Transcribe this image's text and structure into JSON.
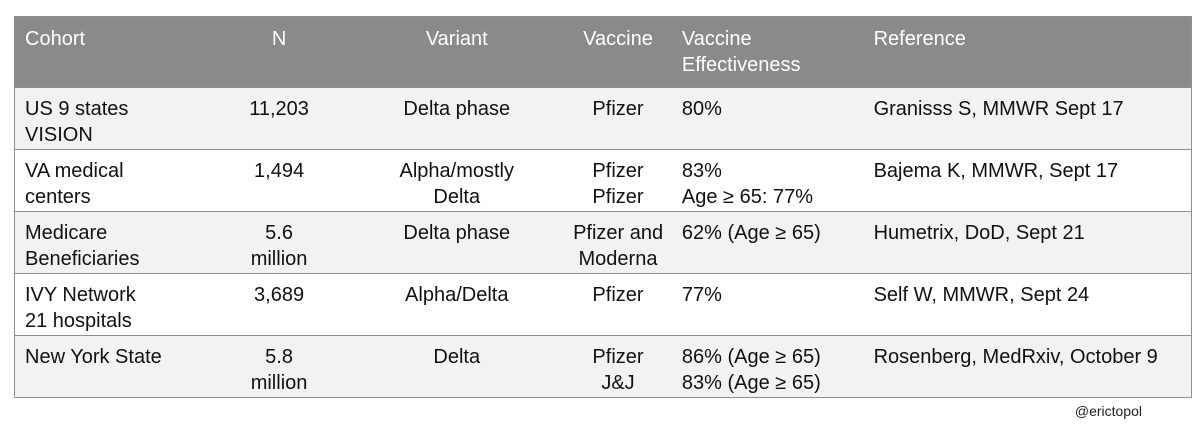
{
  "table": {
    "headers": [
      "Cohort",
      "N",
      "Variant",
      "Vaccine",
      "Vaccine Effectiveness",
      "Reference"
    ],
    "header_lines": [
      [
        "Cohort"
      ],
      [
        "N"
      ],
      [
        "Variant"
      ],
      [
        "Vaccine"
      ],
      [
        "Vaccine",
        "Effectiveness"
      ],
      [
        "Reference"
      ]
    ],
    "rows": [
      {
        "cohort": [
          "US 9 states",
          "VISION"
        ],
        "n": [
          "11,203"
        ],
        "variant": [
          "Delta phase"
        ],
        "vaccine": [
          "Pfizer"
        ],
        "effectiveness": [
          "80%"
        ],
        "reference": [
          "Granisss S, MMWR Sept 17"
        ]
      },
      {
        "cohort": [
          "VA medical",
          "centers"
        ],
        "n": [
          "1,494"
        ],
        "variant": [
          "Alpha/mostly",
          "Delta"
        ],
        "vaccine": [
          "Pfizer",
          "Pfizer"
        ],
        "effectiveness": [
          "83%",
          "Age ≥ 65: 77%"
        ],
        "reference": [
          "Bajema K, MMWR, Sept 17"
        ]
      },
      {
        "cohort": [
          "Medicare",
          "Beneficiaries"
        ],
        "n": [
          "5.6",
          "million"
        ],
        "variant": [
          "Delta phase"
        ],
        "vaccine": [
          "Pfizer and",
          "Moderna"
        ],
        "effectiveness": [
          "62% (Age ≥ 65)"
        ],
        "reference": [
          "Humetrix, DoD, Sept 21"
        ]
      },
      {
        "cohort": [
          "IVY Network",
          "21 hospitals"
        ],
        "n": [
          "3,689"
        ],
        "variant": [
          "Alpha/Delta"
        ],
        "vaccine": [
          "Pfizer"
        ],
        "effectiveness": [
          "77%"
        ],
        "reference": [
          "Self W, MMWR, Sept 24"
        ]
      },
      {
        "cohort": [
          "New York State"
        ],
        "n": [
          "5.8",
          "million"
        ],
        "variant": [
          "Delta"
        ],
        "vaccine": [
          "Pfizer",
          "J&J"
        ],
        "effectiveness": [
          "86% (Age ≥ 65)",
          "83% (Age ≥ 65)"
        ],
        "reference": [
          "Rosenberg, MedRxiv, October 9"
        ]
      }
    ]
  },
  "credit": "@erictopol",
  "colors": {
    "header_bg": "#8a8a8a",
    "header_text": "#ffffff",
    "row_alt_bg": "#f2f2f2",
    "border": "#8f8f8f"
  }
}
